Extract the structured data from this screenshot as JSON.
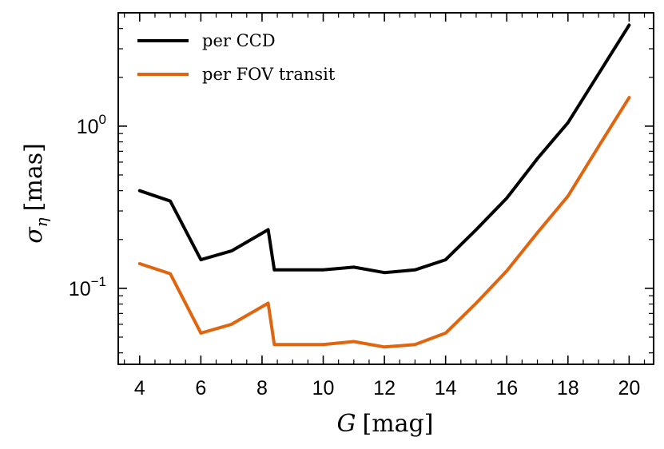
{
  "chart_data": {
    "type": "line",
    "xlabel": {
      "symbol": "G",
      "unit": "[mag]"
    },
    "ylabel": {
      "symbol": "σ",
      "subscript": "η",
      "unit": "[mas]"
    },
    "yscale": "log",
    "xlim": [
      3.3,
      20.8
    ],
    "ylim": [
      0.034,
      5.0
    ],
    "x_ticks": [
      4,
      6,
      8,
      10,
      12,
      14,
      16,
      18,
      20
    ],
    "y_ticks": [
      {
        "value": 1.0,
        "base": "10",
        "exp": "0"
      },
      {
        "value": 0.1,
        "base": "10",
        "exp": "−1"
      }
    ],
    "legend_position": "top-left",
    "series": [
      {
        "name": "per CCD",
        "color": "#000000",
        "x": [
          4,
          5,
          6,
          7,
          8.2,
          8.4,
          10,
          11,
          12,
          13,
          14,
          15,
          16,
          17,
          18,
          19,
          20
        ],
        "y": [
          0.4,
          0.345,
          0.15,
          0.17,
          0.23,
          0.13,
          0.13,
          0.135,
          0.125,
          0.13,
          0.15,
          0.23,
          0.36,
          0.63,
          1.05,
          2.1,
          4.2
        ]
      },
      {
        "name": "per FOV transit",
        "color": "#e0650e",
        "x": [
          4,
          5,
          6,
          7,
          8.2,
          8.4,
          10,
          11,
          12,
          13,
          14,
          15,
          16,
          17,
          18,
          19,
          20
        ],
        "y": [
          0.142,
          0.123,
          0.053,
          0.06,
          0.081,
          0.045,
          0.045,
          0.047,
          0.0435,
          0.045,
          0.053,
          0.081,
          0.128,
          0.22,
          0.37,
          0.75,
          1.5
        ]
      }
    ]
  }
}
